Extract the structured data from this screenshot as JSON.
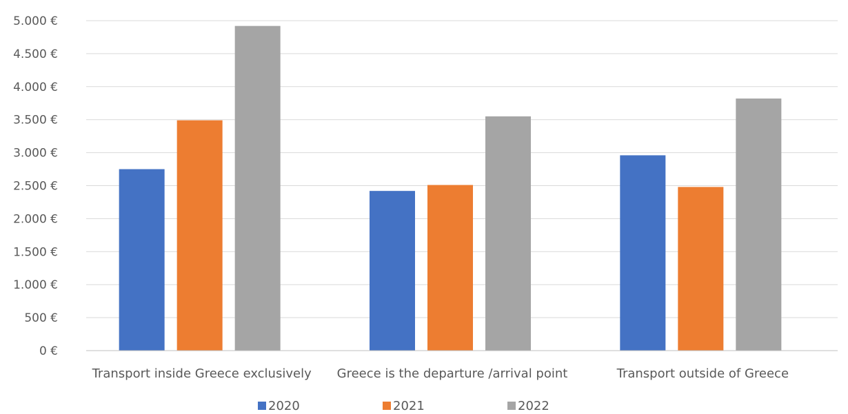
{
  "chart_data": {
    "type": "bar",
    "title": "",
    "xlabel": "",
    "ylabel": "",
    "categories": [
      "Transport inside Greece exclusively",
      "Greece is the departure /arrival point",
      "Transport outside of Greece"
    ],
    "series": [
      {
        "name": "2020",
        "color": "#4472C4",
        "values": [
          2750,
          2420,
          2960
        ]
      },
      {
        "name": "2021",
        "color": "#ED7D31",
        "values": [
          3490,
          2510,
          2480
        ]
      },
      {
        "name": "2022",
        "color": "#A5A5A5",
        "values": [
          4920,
          3550,
          3820
        ]
      }
    ],
    "ylim": [
      0,
      5000
    ],
    "y_ticks": [
      0,
      500,
      1000,
      1500,
      2000,
      2500,
      3000,
      3500,
      4000,
      4500,
      5000
    ],
    "y_tick_labels": [
      "0 €",
      "500 €",
      "1.000 €",
      "1.500 €",
      "2.000 €",
      "2.500 €",
      "3.000 €",
      "3.500 €",
      "4.000 €",
      "4.500 €",
      "5.000 €"
    ],
    "grid": true,
    "legend_position": "bottom",
    "gridline_color": "#D9D9D9",
    "axis_color": "#BFBFBF"
  }
}
